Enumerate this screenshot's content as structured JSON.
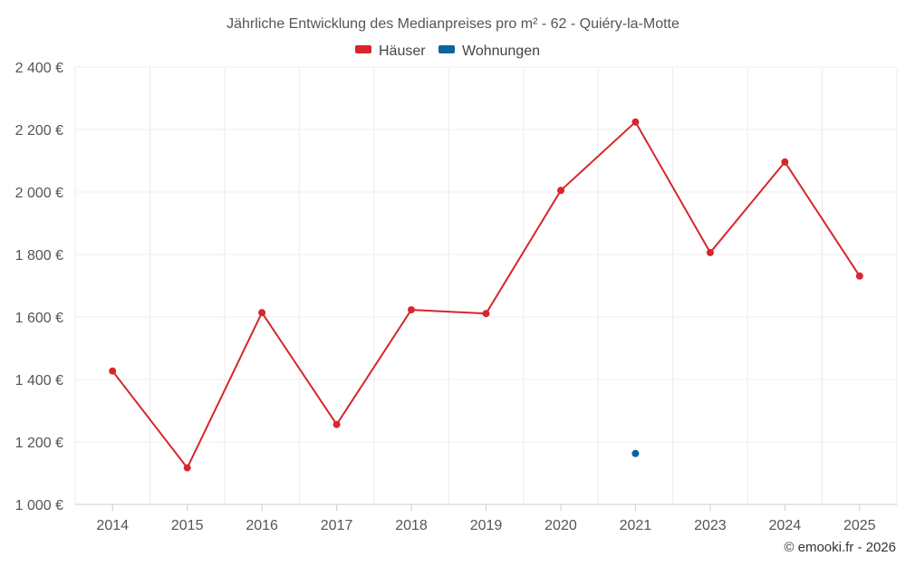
{
  "chart_data": {
    "type": "line",
    "title": "Jährliche Entwicklung des Medianpreises pro m² - 62 - Quiéry-la-Motte",
    "categories": [
      "2014",
      "2015",
      "2016",
      "2017",
      "2018",
      "2019",
      "2020",
      "2021",
      "2023",
      "2024",
      "2025"
    ],
    "series": [
      {
        "name": "Häuser",
        "color": "#d7262c",
        "values": [
          1427,
          1117,
          1614,
          1256,
          1623,
          1611,
          2005,
          2224,
          1806,
          2096,
          1731
        ]
      },
      {
        "name": "Wohnungen",
        "color": "#0b64a0",
        "values": [
          null,
          null,
          null,
          null,
          null,
          null,
          null,
          1163,
          null,
          null,
          null
        ]
      }
    ],
    "ylim": [
      1000,
      2400
    ],
    "yticks": [
      1000,
      1200,
      1400,
      1600,
      1800,
      2000,
      2200,
      2400
    ],
    "ytick_labels": [
      "1 000 €",
      "1 200 €",
      "1 400 €",
      "1 600 €",
      "1 800 €",
      "2 000 €",
      "2 200 €",
      "2 400 €"
    ],
    "xlabel": "",
    "ylabel": "",
    "grid": true,
    "legend": "top-center",
    "credit": "© emooki.fr - 2026"
  }
}
